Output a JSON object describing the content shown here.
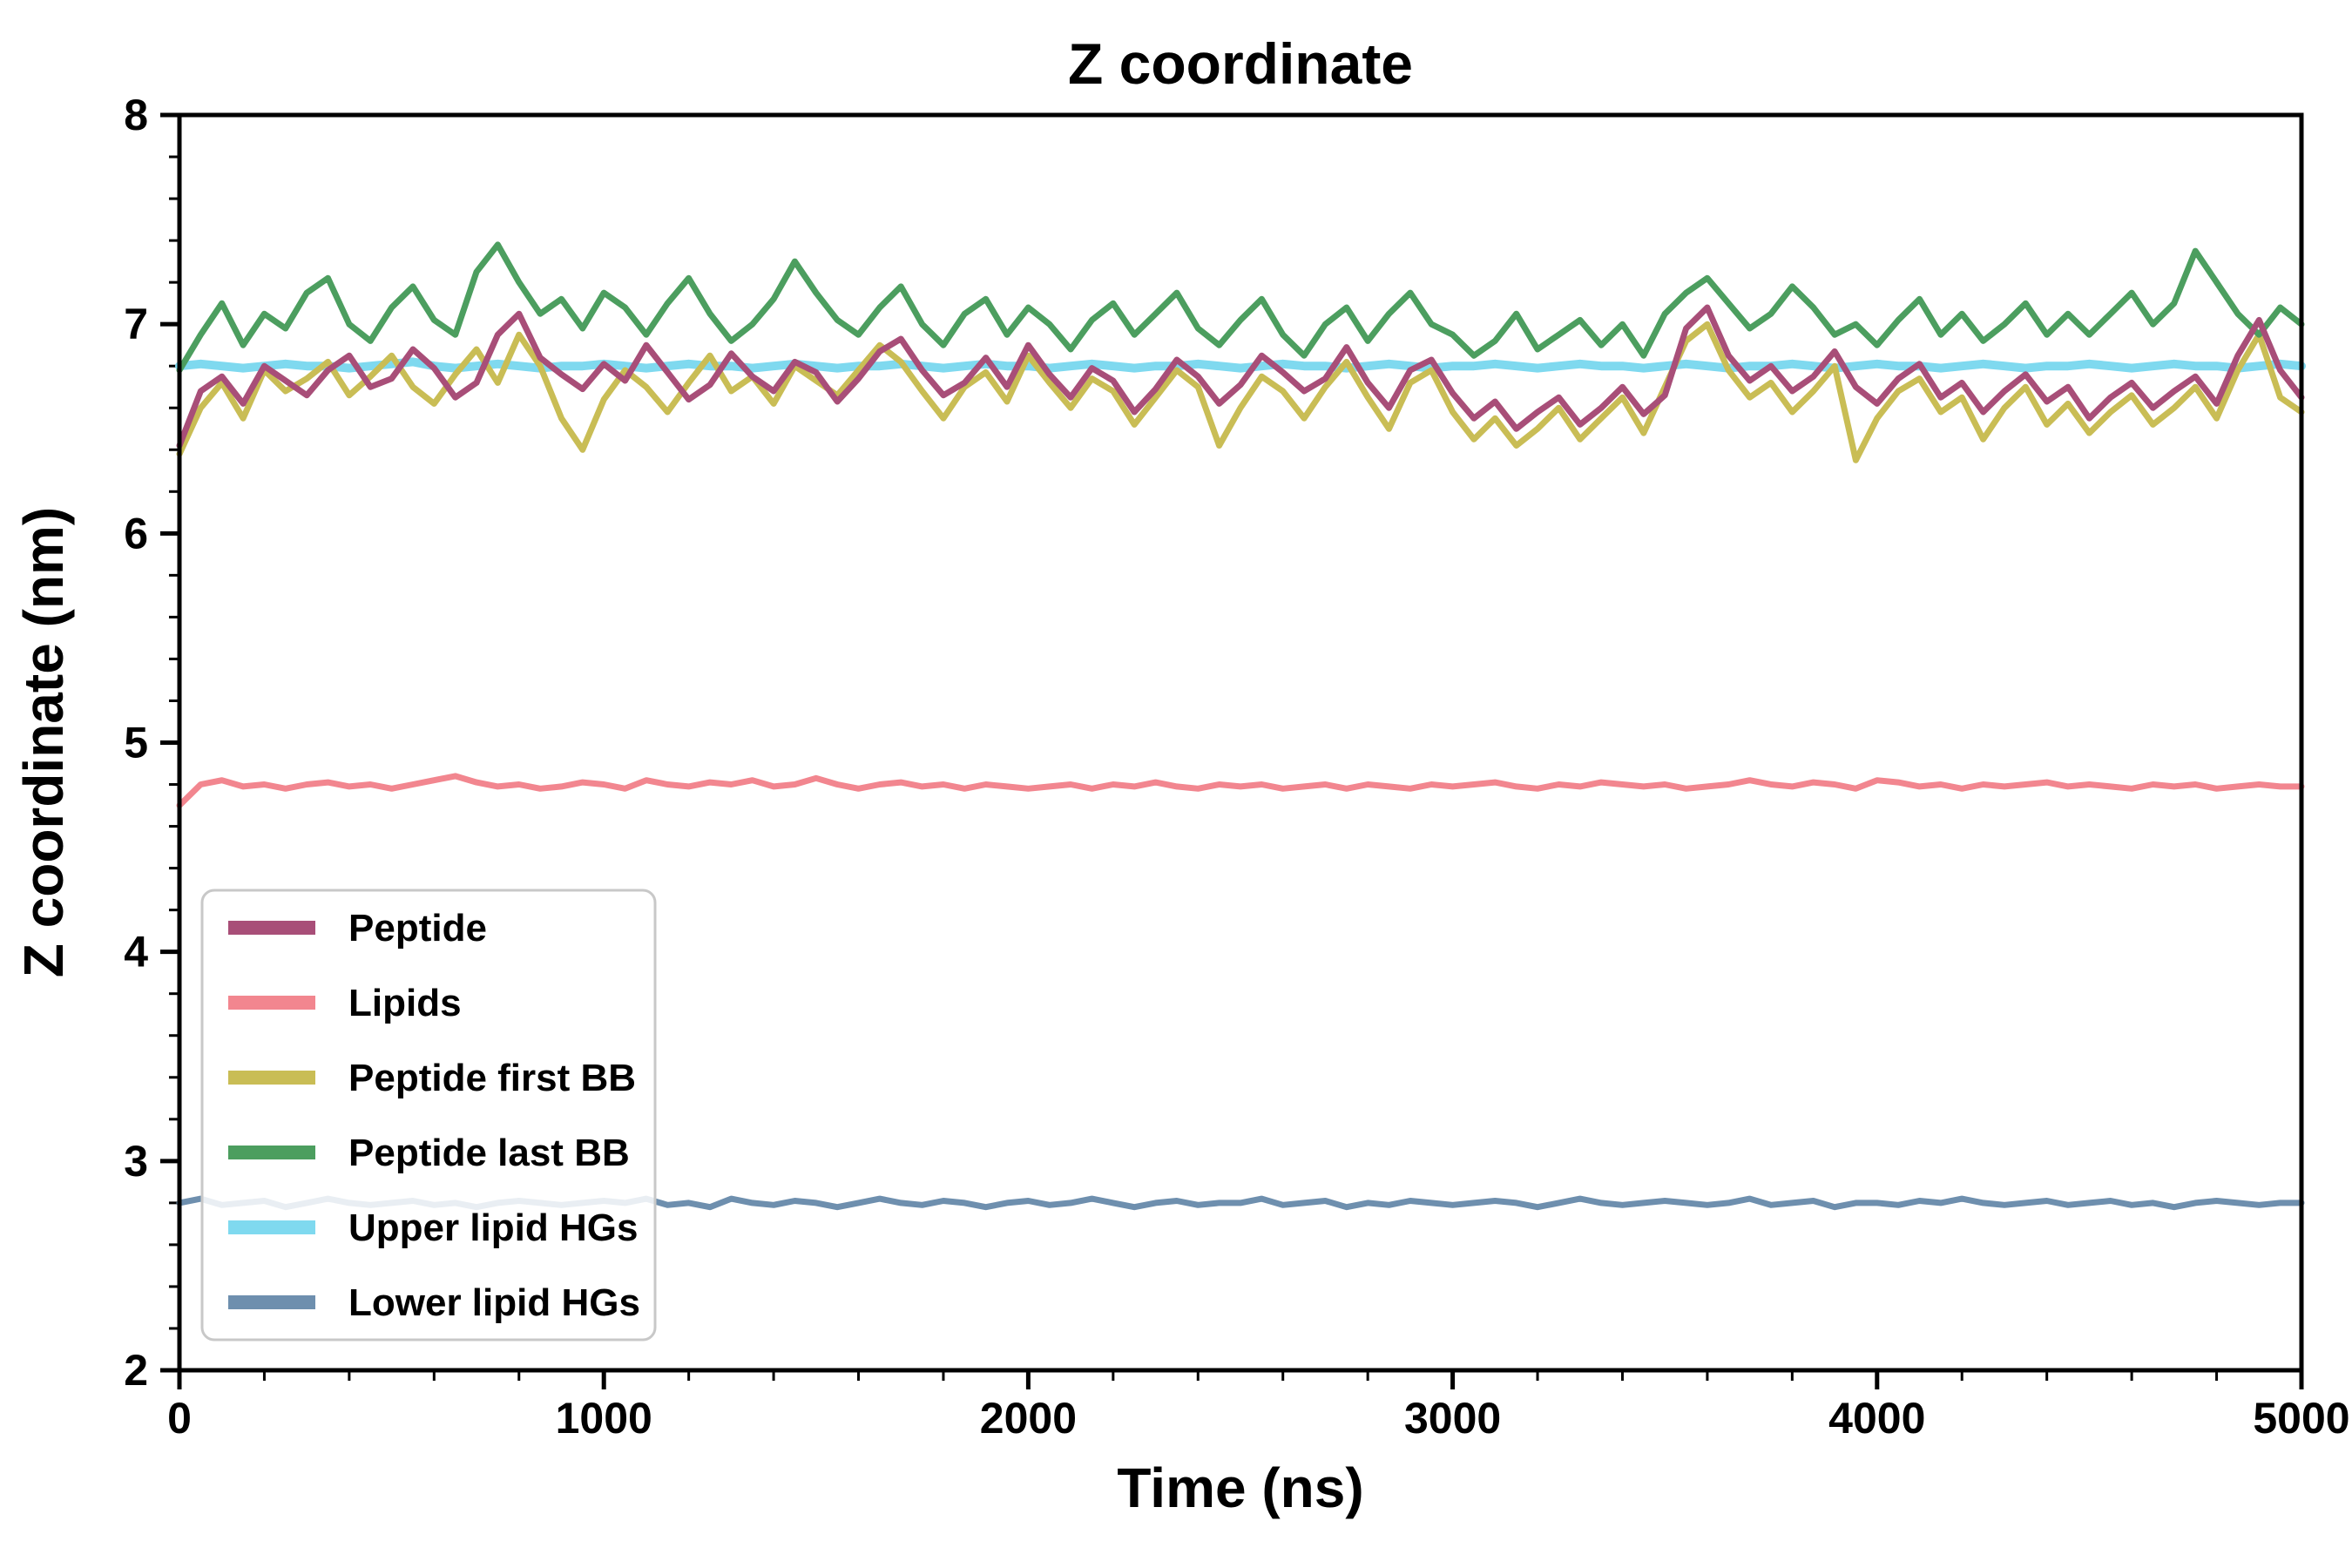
{
  "chart_data": {
    "type": "line",
    "title": "Z coordinate",
    "xlabel": "Time (ns)",
    "ylabel": "Z coordinate (nm)",
    "xlim": [
      0,
      5000
    ],
    "ylim": [
      2,
      8
    ],
    "x_major_ticks": [
      0,
      1000,
      2000,
      3000,
      4000,
      5000
    ],
    "x_minor_step": 200,
    "y_major_ticks": [
      2,
      3,
      4,
      5,
      6,
      7,
      8
    ],
    "y_minor_step": 0.2,
    "grid": false,
    "legend_position": "lower-left",
    "x": [
      0,
      50,
      100,
      150,
      200,
      250,
      300,
      350,
      400,
      450,
      500,
      550,
      600,
      650,
      700,
      750,
      800,
      850,
      900,
      950,
      1000,
      1050,
      1100,
      1150,
      1200,
      1250,
      1300,
      1350,
      1400,
      1450,
      1500,
      1550,
      1600,
      1650,
      1700,
      1750,
      1800,
      1850,
      1900,
      1950,
      2000,
      2050,
      2100,
      2150,
      2200,
      2250,
      2300,
      2350,
      2400,
      2450,
      2500,
      2550,
      2600,
      2650,
      2700,
      2750,
      2800,
      2850,
      2900,
      2950,
      3000,
      3050,
      3100,
      3150,
      3200,
      3250,
      3300,
      3350,
      3400,
      3450,
      3500,
      3550,
      3600,
      3650,
      3700,
      3750,
      3800,
      3850,
      3900,
      3950,
      4000,
      4050,
      4100,
      4150,
      4200,
      4250,
      4300,
      4350,
      4400,
      4450,
      4500,
      4550,
      4600,
      4650,
      4700,
      4750,
      4800,
      4850,
      4900,
      4950,
      5000
    ],
    "series": [
      {
        "name": "Peptide",
        "color": "#a84e78",
        "values": [
          6.42,
          6.68,
          6.75,
          6.62,
          6.8,
          6.73,
          6.66,
          6.78,
          6.85,
          6.7,
          6.74,
          6.88,
          6.79,
          6.65,
          6.72,
          6.95,
          7.05,
          6.84,
          6.76,
          6.69,
          6.81,
          6.73,
          6.9,
          6.77,
          6.64,
          6.71,
          6.86,
          6.75,
          6.68,
          6.82,
          6.77,
          6.63,
          6.74,
          6.87,
          6.93,
          6.78,
          6.66,
          6.72,
          6.84,
          6.7,
          6.9,
          6.76,
          6.65,
          6.79,
          6.73,
          6.58,
          6.69,
          6.83,
          6.75,
          6.62,
          6.71,
          6.85,
          6.77,
          6.68,
          6.74,
          6.89,
          6.72,
          6.6,
          6.78,
          6.83,
          6.67,
          6.55,
          6.63,
          6.5,
          6.58,
          6.65,
          6.52,
          6.6,
          6.7,
          6.57,
          6.66,
          6.98,
          7.08,
          6.85,
          6.73,
          6.8,
          6.68,
          6.75,
          6.87,
          6.7,
          6.62,
          6.74,
          6.81,
          6.65,
          6.72,
          6.58,
          6.68,
          6.76,
          6.63,
          6.7,
          6.55,
          6.65,
          6.72,
          6.6,
          6.68,
          6.75,
          6.62,
          6.85,
          7.02,
          6.78,
          6.65
        ]
      },
      {
        "name": "Lipids",
        "color": "#f2868f",
        "values": [
          4.7,
          4.8,
          4.82,
          4.79,
          4.8,
          4.78,
          4.8,
          4.81,
          4.79,
          4.8,
          4.78,
          4.8,
          4.82,
          4.84,
          4.81,
          4.79,
          4.8,
          4.78,
          4.79,
          4.81,
          4.8,
          4.78,
          4.82,
          4.8,
          4.79,
          4.81,
          4.8,
          4.82,
          4.79,
          4.8,
          4.83,
          4.8,
          4.78,
          4.8,
          4.81,
          4.79,
          4.8,
          4.78,
          4.8,
          4.79,
          4.78,
          4.79,
          4.8,
          4.78,
          4.8,
          4.79,
          4.81,
          4.79,
          4.78,
          4.8,
          4.79,
          4.8,
          4.78,
          4.79,
          4.8,
          4.78,
          4.8,
          4.79,
          4.78,
          4.8,
          4.79,
          4.8,
          4.81,
          4.79,
          4.78,
          4.8,
          4.79,
          4.81,
          4.8,
          4.79,
          4.8,
          4.78,
          4.79,
          4.8,
          4.82,
          4.8,
          4.79,
          4.81,
          4.8,
          4.78,
          4.82,
          4.81,
          4.79,
          4.8,
          4.78,
          4.8,
          4.79,
          4.8,
          4.81,
          4.79,
          4.8,
          4.79,
          4.78,
          4.8,
          4.79,
          4.8,
          4.78,
          4.79,
          4.8,
          4.79,
          4.79
        ]
      },
      {
        "name": "Peptide first BB",
        "color": "#c9bd55",
        "values": [
          6.38,
          6.6,
          6.72,
          6.55,
          6.78,
          6.68,
          6.74,
          6.82,
          6.66,
          6.75,
          6.85,
          6.7,
          6.62,
          6.76,
          6.88,
          6.72,
          6.95,
          6.8,
          6.55,
          6.4,
          6.64,
          6.78,
          6.7,
          6.58,
          6.72,
          6.85,
          6.68,
          6.75,
          6.62,
          6.8,
          6.73,
          6.66,
          6.78,
          6.9,
          6.82,
          6.68,
          6.55,
          6.7,
          6.77,
          6.63,
          6.85,
          6.72,
          6.6,
          6.74,
          6.68,
          6.52,
          6.65,
          6.78,
          6.7,
          6.42,
          6.6,
          6.75,
          6.68,
          6.55,
          6.7,
          6.82,
          6.65,
          6.5,
          6.72,
          6.78,
          6.58,
          6.45,
          6.55,
          6.42,
          6.5,
          6.6,
          6.45,
          6.55,
          6.65,
          6.48,
          6.7,
          6.92,
          7.0,
          6.78,
          6.65,
          6.72,
          6.58,
          6.68,
          6.8,
          6.35,
          6.55,
          6.68,
          6.74,
          6.58,
          6.65,
          6.45,
          6.6,
          6.7,
          6.52,
          6.62,
          6.48,
          6.58,
          6.66,
          6.52,
          6.6,
          6.7,
          6.55,
          6.78,
          6.95,
          6.65,
          6.58
        ]
      },
      {
        "name": "Peptide last BB",
        "color": "#4c9e5f",
        "values": [
          6.78,
          6.95,
          7.1,
          6.9,
          7.05,
          6.98,
          7.15,
          7.22,
          7.0,
          6.92,
          7.08,
          7.18,
          7.02,
          6.95,
          7.25,
          7.38,
          7.2,
          7.05,
          7.12,
          6.98,
          7.15,
          7.08,
          6.95,
          7.1,
          7.22,
          7.05,
          6.92,
          7.0,
          7.12,
          7.3,
          7.15,
          7.02,
          6.95,
          7.08,
          7.18,
          7.0,
          6.9,
          7.05,
          7.12,
          6.95,
          7.08,
          7.0,
          6.88,
          7.02,
          7.1,
          6.95,
          7.05,
          7.15,
          6.98,
          6.9,
          7.02,
          7.12,
          6.95,
          6.85,
          7.0,
          7.08,
          6.92,
          7.05,
          7.15,
          7.0,
          6.95,
          6.85,
          6.92,
          7.05,
          6.88,
          6.95,
          7.02,
          6.9,
          7.0,
          6.85,
          7.05,
          7.15,
          7.22,
          7.1,
          6.98,
          7.05,
          7.18,
          7.08,
          6.95,
          7.0,
          6.9,
          7.02,
          7.12,
          6.95,
          7.05,
          6.92,
          7.0,
          7.1,
          6.95,
          7.05,
          6.95,
          7.05,
          7.15,
          7.0,
          7.1,
          7.35,
          7.2,
          7.05,
          6.95,
          7.08,
          7.0
        ]
      },
      {
        "name": "Upper lipid HGs",
        "color": "#7fd9ef",
        "values": [
          6.8,
          6.81,
          6.8,
          6.79,
          6.8,
          6.81,
          6.8,
          6.8,
          6.79,
          6.8,
          6.81,
          6.82,
          6.8,
          6.79,
          6.8,
          6.81,
          6.8,
          6.79,
          6.8,
          6.8,
          6.81,
          6.8,
          6.79,
          6.8,
          6.81,
          6.8,
          6.8,
          6.79,
          6.8,
          6.81,
          6.8,
          6.79,
          6.8,
          6.8,
          6.81,
          6.8,
          6.79,
          6.8,
          6.81,
          6.8,
          6.8,
          6.79,
          6.8,
          6.81,
          6.8,
          6.79,
          6.8,
          6.8,
          6.81,
          6.8,
          6.79,
          6.8,
          6.81,
          6.8,
          6.8,
          6.79,
          6.8,
          6.81,
          6.8,
          6.79,
          6.8,
          6.8,
          6.81,
          6.8,
          6.79,
          6.8,
          6.81,
          6.8,
          6.8,
          6.79,
          6.8,
          6.81,
          6.8,
          6.79,
          6.8,
          6.8,
          6.81,
          6.8,
          6.79,
          6.8,
          6.81,
          6.8,
          6.8,
          6.79,
          6.8,
          6.81,
          6.8,
          6.79,
          6.8,
          6.8,
          6.81,
          6.8,
          6.79,
          6.8,
          6.81,
          6.8,
          6.8,
          6.79,
          6.8,
          6.81,
          6.8
        ]
      },
      {
        "name": "Lower lipid HGs",
        "color": "#6e8fae",
        "values": [
          2.8,
          2.82,
          2.79,
          2.8,
          2.81,
          2.78,
          2.8,
          2.82,
          2.8,
          2.79,
          2.8,
          2.81,
          2.79,
          2.8,
          2.78,
          2.8,
          2.81,
          2.8,
          2.79,
          2.8,
          2.81,
          2.8,
          2.82,
          2.79,
          2.8,
          2.78,
          2.82,
          2.8,
          2.79,
          2.81,
          2.8,
          2.78,
          2.8,
          2.82,
          2.8,
          2.79,
          2.81,
          2.8,
          2.78,
          2.8,
          2.81,
          2.79,
          2.8,
          2.82,
          2.8,
          2.78,
          2.8,
          2.81,
          2.79,
          2.8,
          2.8,
          2.82,
          2.79,
          2.8,
          2.81,
          2.78,
          2.8,
          2.79,
          2.81,
          2.8,
          2.79,
          2.8,
          2.81,
          2.8,
          2.78,
          2.8,
          2.82,
          2.8,
          2.79,
          2.8,
          2.81,
          2.8,
          2.79,
          2.8,
          2.82,
          2.79,
          2.8,
          2.81,
          2.78,
          2.8,
          2.8,
          2.79,
          2.81,
          2.8,
          2.82,
          2.8,
          2.79,
          2.8,
          2.81,
          2.79,
          2.8,
          2.81,
          2.79,
          2.8,
          2.78,
          2.8,
          2.81,
          2.8,
          2.79,
          2.8,
          2.8
        ]
      }
    ],
    "draw_order": [
      "Lipids",
      "Lower lipid HGs",
      "Upper lipid HGs",
      "Peptide first BB",
      "Peptide last BB",
      "Peptide"
    ],
    "legend_entries": [
      "Peptide",
      "Lipids",
      "Peptide first BB",
      "Peptide last BB",
      "Upper lipid HGs",
      "Lower lipid HGs"
    ]
  },
  "style": {
    "spine_color": "#000000",
    "text_color": "#000000",
    "legend_border_color": "#c8c8c8",
    "legend_background": "rgba(255,255,255,0.85)"
  }
}
